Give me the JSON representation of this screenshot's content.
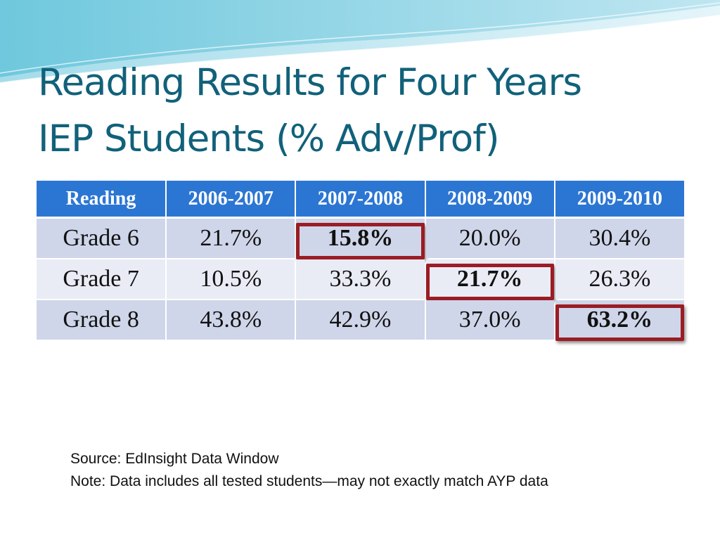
{
  "slide": {
    "title_line1": "Reading Results for Four Years",
    "title_line2": "IEP Students (% Adv/Prof)"
  },
  "table": {
    "headers": [
      "Reading",
      "2006-2007",
      "2007-2008",
      "2008-2009",
      "2009-2010"
    ],
    "rows": [
      {
        "label": "Grade 6",
        "values": [
          "21.7%",
          "15.8%",
          "20.0%",
          "30.4%"
        ],
        "highlighted_column": "2007-2008"
      },
      {
        "label": "Grade 7",
        "values": [
          "10.5%",
          "33.3%",
          "21.7%",
          "26.3%"
        ],
        "highlighted_column": "2008-2009"
      },
      {
        "label": "Grade 8",
        "values": [
          "43.8%",
          "42.9%",
          "37.0%",
          "63.2%"
        ],
        "highlighted_column": "2009-2010"
      }
    ]
  },
  "notes": {
    "source": "Source: EdInsight Data Window",
    "note": "Note:  Data includes all tested students—may not exactly match AYP data"
  },
  "colors": {
    "title": "#11617a",
    "header_bg": "#2c76d3",
    "row_dark": "#cfd6ea",
    "row_light": "#e9ecf5",
    "highlight_border": "#9b1c24"
  }
}
